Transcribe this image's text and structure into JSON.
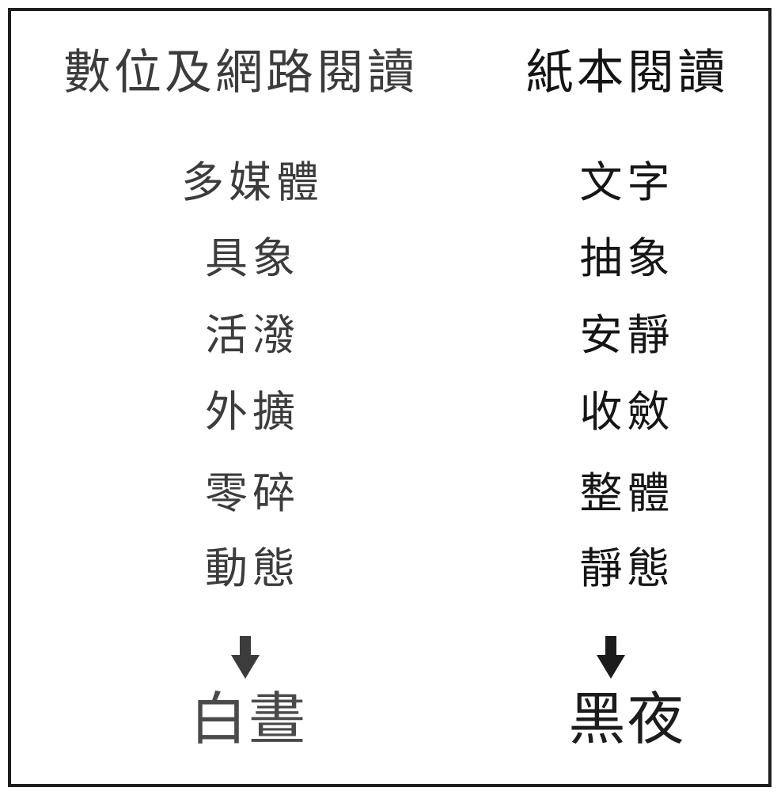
{
  "left": {
    "heading": "數位及網路閱讀",
    "items": [
      "多媒體",
      "具象",
      "活潑",
      "外擴",
      "零碎",
      "動態"
    ],
    "result": "白晝",
    "color": "#3c3c3c"
  },
  "right": {
    "heading": "紙本閱讀",
    "items": [
      "文字",
      "抽象",
      "安靜",
      "收斂",
      "整體",
      "靜態"
    ],
    "result": "黑夜",
    "color": "#161616"
  },
  "arrow_icon": "down-arrow-icon"
}
